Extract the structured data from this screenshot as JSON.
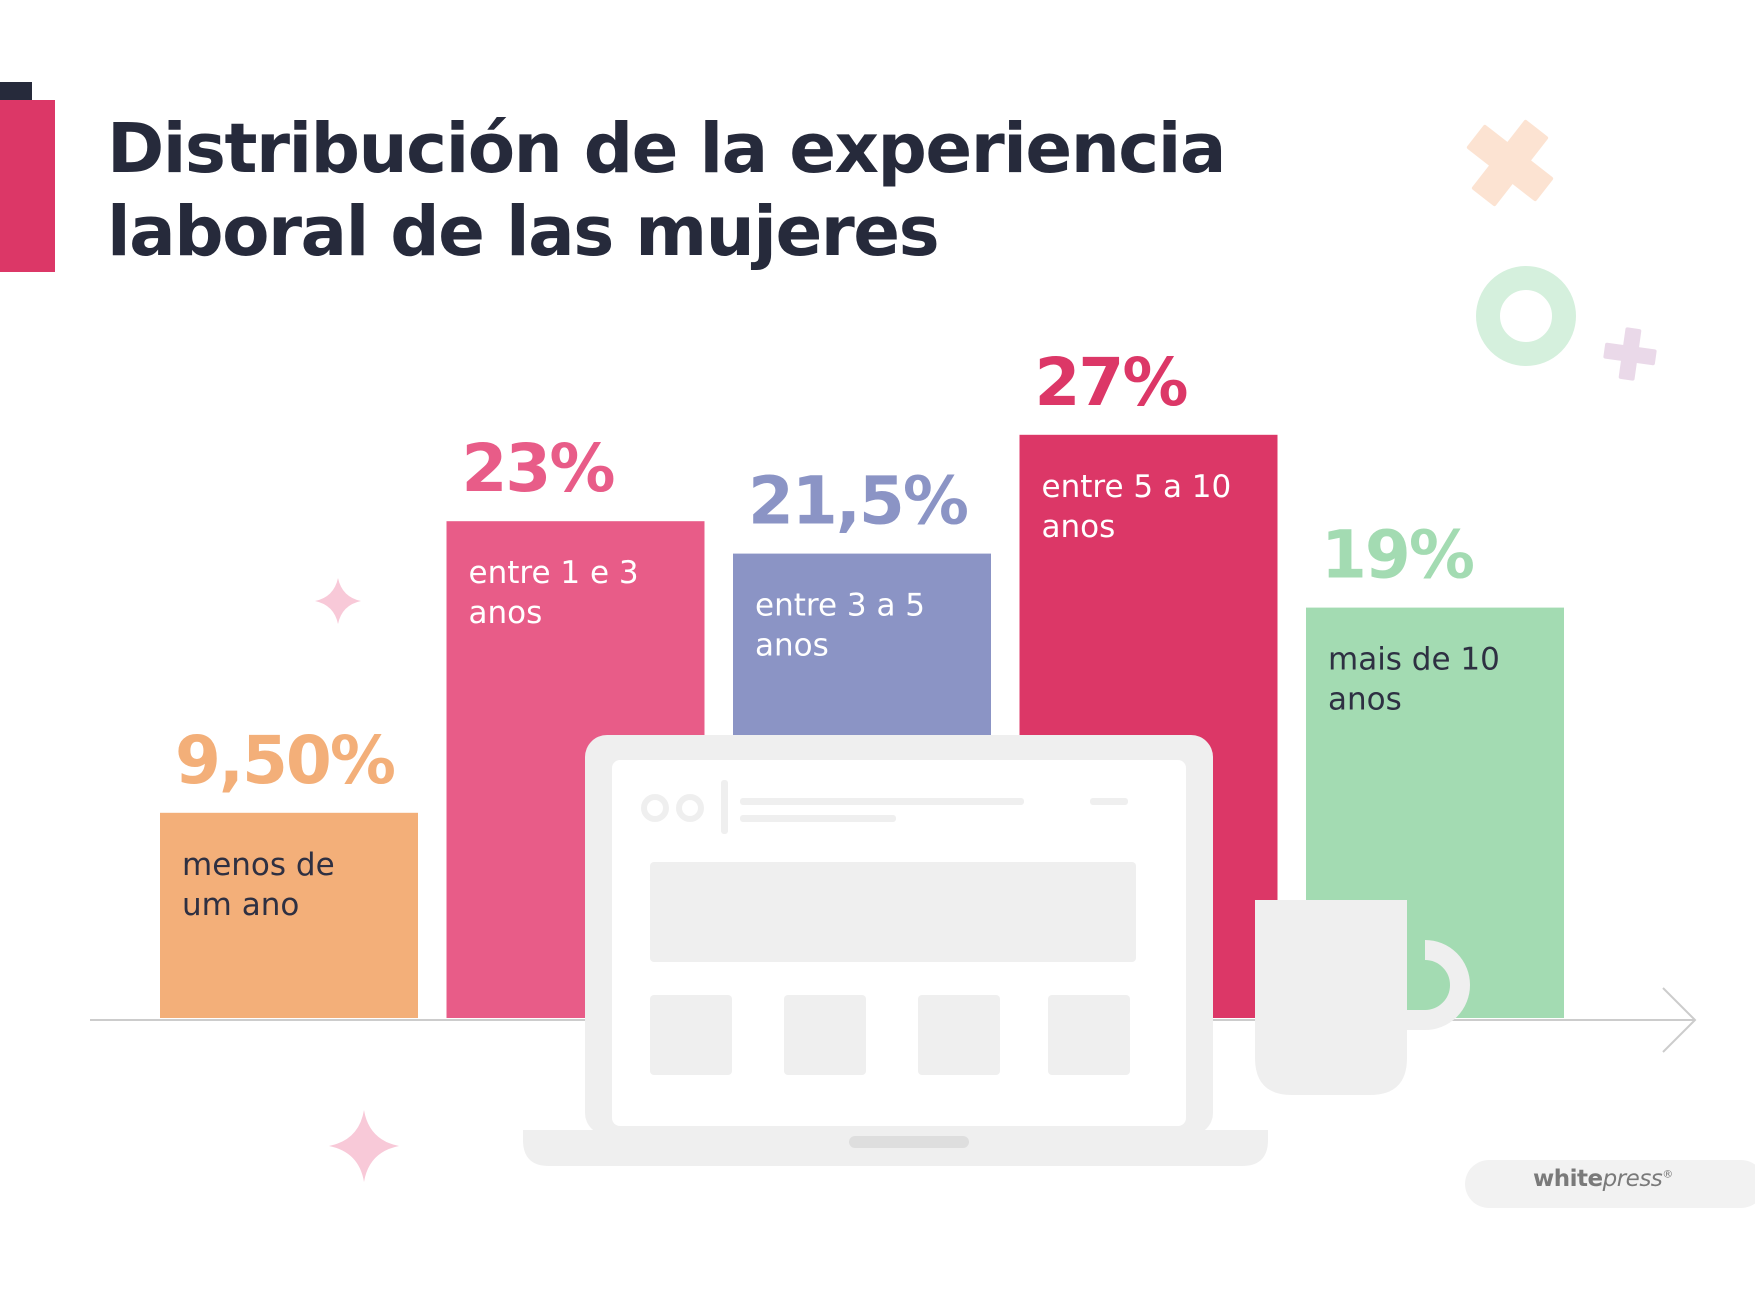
{
  "title": {
    "line1": "Distribución de la experiencia",
    "line2": "laboral de las mujeres"
  },
  "brand": {
    "bold": "white",
    "italic": "press",
    "mark": "®"
  },
  "colors": {
    "title": "#262a3b",
    "orange": "#f3af79",
    "pink": "#e85c88",
    "purple": "#8b94c5",
    "crimson": "#dc3767",
    "green": "#a3dbb2",
    "laptop": "#efefef",
    "axis": "#cccccc"
  },
  "chart_data": {
    "type": "bar",
    "title": "Distribución de la experiencia laboral de las mujeres",
    "xlabel": "",
    "ylabel": "",
    "ylim": [
      0,
      30
    ],
    "grid": false,
    "categories": [
      "menos de um ano",
      "entre 1 e 3 anos",
      "entre 3 a 5 anos",
      "entre 5 a 10 anos",
      "mais de 10 anos"
    ],
    "values": [
      9.5,
      23,
      21.5,
      27,
      19
    ],
    "bars": [
      {
        "value": 9.5,
        "display": "9,50%",
        "label_line1": "menos de",
        "label_line2": "um ano",
        "color": "#f3af79",
        "pct_color": "#f3af79",
        "label_color": "#2e3042"
      },
      {
        "value": 23,
        "display": "23%",
        "label_line1": "entre 1 e 3",
        "label_line2": "anos",
        "color": "#e85c88",
        "pct_color": "#e85c88",
        "label_color": "#ffffff"
      },
      {
        "value": 21.5,
        "display": "21,5%",
        "label_line1": "entre 3 a 5",
        "label_line2": "anos",
        "color": "#8b94c5",
        "pct_color": "#8b94c5",
        "label_color": "#ffffff"
      },
      {
        "value": 27,
        "display": "27%",
        "label_line1": "entre 5 a 10",
        "label_line2": "anos",
        "color": "#dc3767",
        "pct_color": "#dc3767",
        "label_color": "#ffffff"
      },
      {
        "value": 19,
        "display": "19%",
        "label_line1": "mais de 10",
        "label_line2": "anos",
        "color": "#a3dbb2",
        "pct_color": "#a3dbb2",
        "label_color": "#2e3042"
      }
    ]
  }
}
